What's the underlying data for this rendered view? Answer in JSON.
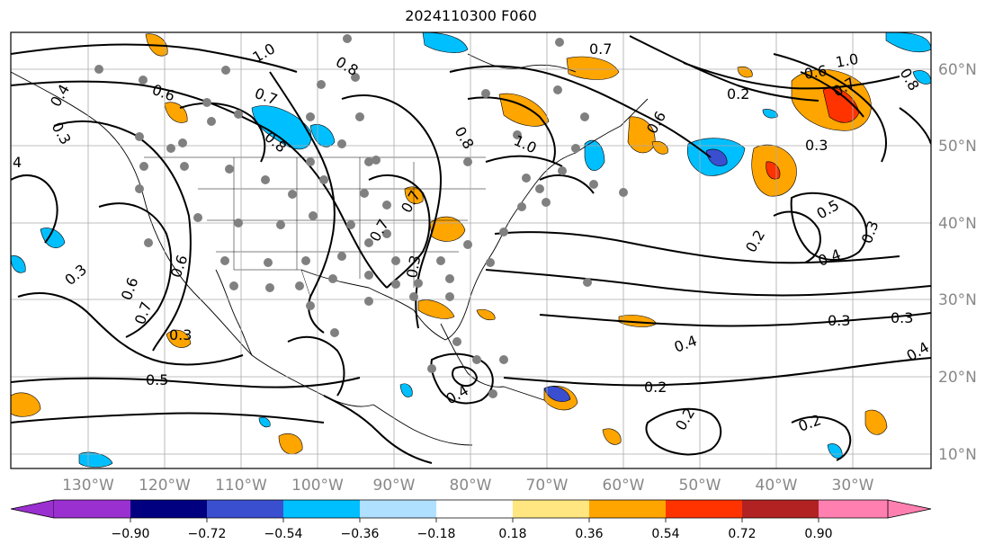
{
  "title": "2024110300 F060",
  "map": {
    "lon_labels": [
      "130°W",
      "120°W",
      "110°W",
      "100°W",
      "90°W",
      "80°W",
      "70°W",
      "60°W",
      "50°W",
      "40°W",
      "30°W"
    ],
    "lat_labels": [
      "60°N",
      "50°N",
      "40°N",
      "30°N",
      "20°N",
      "10°N"
    ],
    "axis_color": "#888888",
    "gridline_color": "#aaaaaa",
    "contour_labels": [
      {
        "text": "1.0"
      },
      {
        "text": "0.8"
      },
      {
        "text": "0.6"
      },
      {
        "text": "0.7"
      },
      {
        "text": "0.3"
      },
      {
        "text": "1.0"
      },
      {
        "text": "0.8"
      },
      {
        "text": "0.7"
      },
      {
        "text": "0.8"
      },
      {
        "text": "0.7"
      },
      {
        "text": "0.6"
      },
      {
        "text": "0.7"
      },
      {
        "text": "0.3"
      },
      {
        "text": "0.6"
      },
      {
        "text": "0.7"
      },
      {
        "text": "0.3"
      },
      {
        "text": "0.5"
      },
      {
        "text": "0.4"
      },
      {
        "text": "0.2"
      },
      {
        "text": "0.2"
      },
      {
        "text": "0.3"
      },
      {
        "text": "0.5"
      },
      {
        "text": "0.4"
      },
      {
        "text": "0.3"
      },
      {
        "text": "0.3"
      },
      {
        "text": "0.4"
      },
      {
        "text": "0.2"
      },
      {
        "text": "0.2"
      },
      {
        "text": "0.4"
      },
      {
        "text": "0.6"
      },
      {
        "text": "1.0"
      },
      {
        "text": "0.7"
      },
      {
        "text": "0.6"
      },
      {
        "text": "0.2"
      },
      {
        "text": "0.3"
      },
      {
        "text": "0.3"
      },
      {
        "text": "0.4"
      },
      {
        "text": "4"
      },
      {
        "text": "0.8"
      }
    ]
  },
  "colorbar": {
    "ticks": [
      "−0.90",
      "−0.72",
      "−0.54",
      "−0.36",
      "−0.18",
      "0.18",
      "0.36",
      "0.54",
      "0.72",
      "0.90"
    ],
    "colors": [
      "#9b30d0",
      "#000080",
      "#3a4fcf",
      "#00bfff",
      "#b0e0ff",
      "#ffffff",
      "#ffe680",
      "#ffa500",
      "#ff3300",
      "#b22222",
      "#ff80b0"
    ]
  }
}
